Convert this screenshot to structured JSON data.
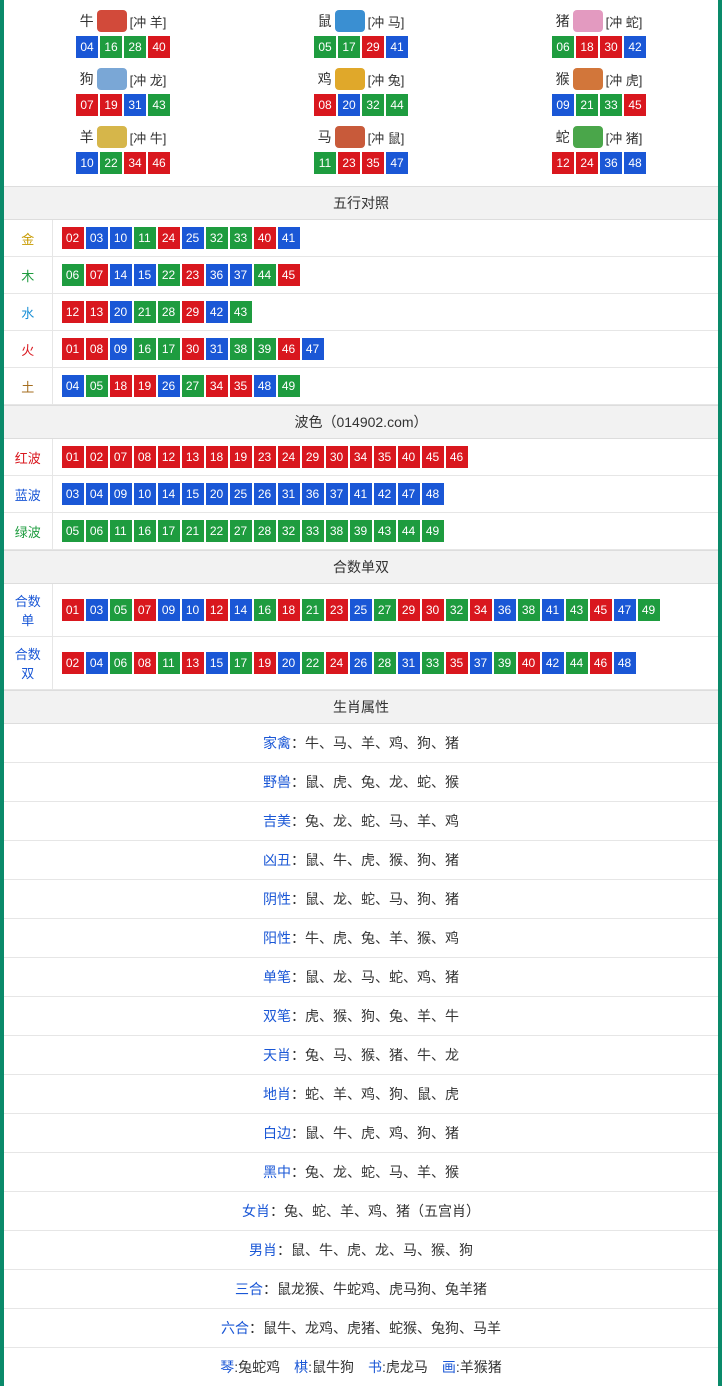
{
  "colors": {
    "red": "#d9171e",
    "blue": "#1a57d6",
    "green": "#1e9c3f",
    "border": "#0a8a6a"
  },
  "zodiac": [
    {
      "name": "牛",
      "icon_color": "#d24a3a",
      "conflict": "[冲 羊]",
      "nums": [
        {
          "v": "04",
          "c": "blue"
        },
        {
          "v": "16",
          "c": "green"
        },
        {
          "v": "28",
          "c": "green"
        },
        {
          "v": "40",
          "c": "red"
        }
      ]
    },
    {
      "name": "鼠",
      "icon_color": "#3a8fd2",
      "conflict": "[冲 马]",
      "nums": [
        {
          "v": "05",
          "c": "green"
        },
        {
          "v": "17",
          "c": "green"
        },
        {
          "v": "29",
          "c": "red"
        },
        {
          "v": "41",
          "c": "blue"
        }
      ]
    },
    {
      "name": "猪",
      "icon_color": "#e39ac0",
      "conflict": "[冲 蛇]",
      "nums": [
        {
          "v": "06",
          "c": "green"
        },
        {
          "v": "18",
          "c": "red"
        },
        {
          "v": "30",
          "c": "red"
        },
        {
          "v": "42",
          "c": "blue"
        }
      ]
    },
    {
      "name": "狗",
      "icon_color": "#7aa7d6",
      "conflict": "[冲 龙]",
      "nums": [
        {
          "v": "07",
          "c": "red"
        },
        {
          "v": "19",
          "c": "red"
        },
        {
          "v": "31",
          "c": "blue"
        },
        {
          "v": "43",
          "c": "green"
        }
      ]
    },
    {
      "name": "鸡",
      "icon_color": "#e0a82a",
      "conflict": "[冲 兔]",
      "nums": [
        {
          "v": "08",
          "c": "red"
        },
        {
          "v": "20",
          "c": "blue"
        },
        {
          "v": "32",
          "c": "green"
        },
        {
          "v": "44",
          "c": "green"
        }
      ]
    },
    {
      "name": "猴",
      "icon_color": "#d2763a",
      "conflict": "[冲 虎]",
      "nums": [
        {
          "v": "09",
          "c": "blue"
        },
        {
          "v": "21",
          "c": "green"
        },
        {
          "v": "33",
          "c": "green"
        },
        {
          "v": "45",
          "c": "red"
        }
      ]
    },
    {
      "name": "羊",
      "icon_color": "#d6b64a",
      "conflict": "[冲 牛]",
      "nums": [
        {
          "v": "10",
          "c": "blue"
        },
        {
          "v": "22",
          "c": "green"
        },
        {
          "v": "34",
          "c": "red"
        },
        {
          "v": "46",
          "c": "red"
        }
      ]
    },
    {
      "name": "马",
      "icon_color": "#c85a3a",
      "conflict": "[冲 鼠]",
      "nums": [
        {
          "v": "11",
          "c": "green"
        },
        {
          "v": "23",
          "c": "red"
        },
        {
          "v": "35",
          "c": "red"
        },
        {
          "v": "47",
          "c": "blue"
        }
      ]
    },
    {
      "name": "蛇",
      "icon_color": "#4aa64a",
      "conflict": "[冲 猪]",
      "nums": [
        {
          "v": "12",
          "c": "red"
        },
        {
          "v": "24",
          "c": "red"
        },
        {
          "v": "36",
          "c": "blue"
        },
        {
          "v": "48",
          "c": "blue"
        }
      ]
    }
  ],
  "sections": {
    "wuxing_title": "五行对照",
    "wuxing": [
      {
        "label": "金",
        "cls": "lbl-gold",
        "nums": [
          {
            "v": "02",
            "c": "red"
          },
          {
            "v": "03",
            "c": "blue"
          },
          {
            "v": "10",
            "c": "blue"
          },
          {
            "v": "11",
            "c": "green"
          },
          {
            "v": "24",
            "c": "red"
          },
          {
            "v": "25",
            "c": "blue"
          },
          {
            "v": "32",
            "c": "green"
          },
          {
            "v": "33",
            "c": "green"
          },
          {
            "v": "40",
            "c": "red"
          },
          {
            "v": "41",
            "c": "blue"
          }
        ]
      },
      {
        "label": "木",
        "cls": "lbl-wood",
        "nums": [
          {
            "v": "06",
            "c": "green"
          },
          {
            "v": "07",
            "c": "red"
          },
          {
            "v": "14",
            "c": "blue"
          },
          {
            "v": "15",
            "c": "blue"
          },
          {
            "v": "22",
            "c": "green"
          },
          {
            "v": "23",
            "c": "red"
          },
          {
            "v": "36",
            "c": "blue"
          },
          {
            "v": "37",
            "c": "blue"
          },
          {
            "v": "44",
            "c": "green"
          },
          {
            "v": "45",
            "c": "red"
          }
        ]
      },
      {
        "label": "水",
        "cls": "lbl-water",
        "nums": [
          {
            "v": "12",
            "c": "red"
          },
          {
            "v": "13",
            "c": "red"
          },
          {
            "v": "20",
            "c": "blue"
          },
          {
            "v": "21",
            "c": "green"
          },
          {
            "v": "28",
            "c": "green"
          },
          {
            "v": "29",
            "c": "red"
          },
          {
            "v": "42",
            "c": "blue"
          },
          {
            "v": "43",
            "c": "green"
          }
        ]
      },
      {
        "label": "火",
        "cls": "lbl-fire",
        "nums": [
          {
            "v": "01",
            "c": "red"
          },
          {
            "v": "08",
            "c": "red"
          },
          {
            "v": "09",
            "c": "blue"
          },
          {
            "v": "16",
            "c": "green"
          },
          {
            "v": "17",
            "c": "green"
          },
          {
            "v": "30",
            "c": "red"
          },
          {
            "v": "31",
            "c": "blue"
          },
          {
            "v": "38",
            "c": "green"
          },
          {
            "v": "39",
            "c": "green"
          },
          {
            "v": "46",
            "c": "red"
          },
          {
            "v": "47",
            "c": "blue"
          }
        ]
      },
      {
        "label": "土",
        "cls": "lbl-earth",
        "nums": [
          {
            "v": "04",
            "c": "blue"
          },
          {
            "v": "05",
            "c": "green"
          },
          {
            "v": "18",
            "c": "red"
          },
          {
            "v": "19",
            "c": "red"
          },
          {
            "v": "26",
            "c": "blue"
          },
          {
            "v": "27",
            "c": "green"
          },
          {
            "v": "34",
            "c": "red"
          },
          {
            "v": "35",
            "c": "red"
          },
          {
            "v": "48",
            "c": "blue"
          },
          {
            "v": "49",
            "c": "green"
          }
        ]
      }
    ],
    "bose_title": "波色（014902.com）",
    "bose": [
      {
        "label": "红波",
        "cls": "lbl-red",
        "nums": [
          {
            "v": "01",
            "c": "red"
          },
          {
            "v": "02",
            "c": "red"
          },
          {
            "v": "07",
            "c": "red"
          },
          {
            "v": "08",
            "c": "red"
          },
          {
            "v": "12",
            "c": "red"
          },
          {
            "v": "13",
            "c": "red"
          },
          {
            "v": "18",
            "c": "red"
          },
          {
            "v": "19",
            "c": "red"
          },
          {
            "v": "23",
            "c": "red"
          },
          {
            "v": "24",
            "c": "red"
          },
          {
            "v": "29",
            "c": "red"
          },
          {
            "v": "30",
            "c": "red"
          },
          {
            "v": "34",
            "c": "red"
          },
          {
            "v": "35",
            "c": "red"
          },
          {
            "v": "40",
            "c": "red"
          },
          {
            "v": "45",
            "c": "red"
          },
          {
            "v": "46",
            "c": "red"
          }
        ]
      },
      {
        "label": "蓝波",
        "cls": "lbl-blue",
        "nums": [
          {
            "v": "03",
            "c": "blue"
          },
          {
            "v": "04",
            "c": "blue"
          },
          {
            "v": "09",
            "c": "blue"
          },
          {
            "v": "10",
            "c": "blue"
          },
          {
            "v": "14",
            "c": "blue"
          },
          {
            "v": "15",
            "c": "blue"
          },
          {
            "v": "20",
            "c": "blue"
          },
          {
            "v": "25",
            "c": "blue"
          },
          {
            "v": "26",
            "c": "blue"
          },
          {
            "v": "31",
            "c": "blue"
          },
          {
            "v": "36",
            "c": "blue"
          },
          {
            "v": "37",
            "c": "blue"
          },
          {
            "v": "41",
            "c": "blue"
          },
          {
            "v": "42",
            "c": "blue"
          },
          {
            "v": "47",
            "c": "blue"
          },
          {
            "v": "48",
            "c": "blue"
          }
        ]
      },
      {
        "label": "绿波",
        "cls": "lbl-green",
        "nums": [
          {
            "v": "05",
            "c": "green"
          },
          {
            "v": "06",
            "c": "green"
          },
          {
            "v": "11",
            "c": "green"
          },
          {
            "v": "16",
            "c": "green"
          },
          {
            "v": "17",
            "c": "green"
          },
          {
            "v": "21",
            "c": "green"
          },
          {
            "v": "22",
            "c": "green"
          },
          {
            "v": "27",
            "c": "green"
          },
          {
            "v": "28",
            "c": "green"
          },
          {
            "v": "32",
            "c": "green"
          },
          {
            "v": "33",
            "c": "green"
          },
          {
            "v": "38",
            "c": "green"
          },
          {
            "v": "39",
            "c": "green"
          },
          {
            "v": "43",
            "c": "green"
          },
          {
            "v": "44",
            "c": "green"
          },
          {
            "v": "49",
            "c": "green"
          }
        ]
      }
    ],
    "heshu_title": "合数单双",
    "heshu": [
      {
        "label": "合数单",
        "cls": "lbl-blue",
        "nums": [
          {
            "v": "01",
            "c": "red"
          },
          {
            "v": "03",
            "c": "blue"
          },
          {
            "v": "05",
            "c": "green"
          },
          {
            "v": "07",
            "c": "red"
          },
          {
            "v": "09",
            "c": "blue"
          },
          {
            "v": "10",
            "c": "blue"
          },
          {
            "v": "12",
            "c": "red"
          },
          {
            "v": "14",
            "c": "blue"
          },
          {
            "v": "16",
            "c": "green"
          },
          {
            "v": "18",
            "c": "red"
          },
          {
            "v": "21",
            "c": "green"
          },
          {
            "v": "23",
            "c": "red"
          },
          {
            "v": "25",
            "c": "blue"
          },
          {
            "v": "27",
            "c": "green"
          },
          {
            "v": "29",
            "c": "red"
          },
          {
            "v": "30",
            "c": "red"
          },
          {
            "v": "32",
            "c": "green"
          },
          {
            "v": "34",
            "c": "red"
          },
          {
            "v": "36",
            "c": "blue"
          },
          {
            "v": "38",
            "c": "green"
          },
          {
            "v": "41",
            "c": "blue"
          },
          {
            "v": "43",
            "c": "green"
          },
          {
            "v": "45",
            "c": "red"
          },
          {
            "v": "47",
            "c": "blue"
          },
          {
            "v": "49",
            "c": "green"
          }
        ]
      },
      {
        "label": "合数双",
        "cls": "lbl-blue",
        "nums": [
          {
            "v": "02",
            "c": "red"
          },
          {
            "v": "04",
            "c": "blue"
          },
          {
            "v": "06",
            "c": "green"
          },
          {
            "v": "08",
            "c": "red"
          },
          {
            "v": "11",
            "c": "green"
          },
          {
            "v": "13",
            "c": "red"
          },
          {
            "v": "15",
            "c": "blue"
          },
          {
            "v": "17",
            "c": "green"
          },
          {
            "v": "19",
            "c": "red"
          },
          {
            "v": "20",
            "c": "blue"
          },
          {
            "v": "22",
            "c": "green"
          },
          {
            "v": "24",
            "c": "red"
          },
          {
            "v": "26",
            "c": "blue"
          },
          {
            "v": "28",
            "c": "green"
          },
          {
            "v": "31",
            "c": "blue"
          },
          {
            "v": "33",
            "c": "green"
          },
          {
            "v": "35",
            "c": "red"
          },
          {
            "v": "37",
            "c": "blue"
          },
          {
            "v": "39",
            "c": "green"
          },
          {
            "v": "40",
            "c": "red"
          },
          {
            "v": "42",
            "c": "blue"
          },
          {
            "v": "44",
            "c": "green"
          },
          {
            "v": "46",
            "c": "red"
          },
          {
            "v": "48",
            "c": "blue"
          }
        ]
      }
    ],
    "attr_title": "生肖属性",
    "attrs": [
      {
        "key": "家禽",
        "kc": "attr-key",
        "val": "：牛、马、羊、鸡、狗、猪"
      },
      {
        "key": "野兽",
        "kc": "attr-key",
        "val": "：鼠、虎、兔、龙、蛇、猴"
      },
      {
        "key": "吉美",
        "kc": "attr-key",
        "val": "：兔、龙、蛇、马、羊、鸡"
      },
      {
        "key": "凶丑",
        "kc": "attr-key",
        "val": "：鼠、牛、虎、猴、狗、猪"
      },
      {
        "key": "阴性",
        "kc": "attr-key",
        "val": "：鼠、龙、蛇、马、狗、猪"
      },
      {
        "key": "阳性",
        "kc": "attr-key",
        "val": "：牛、虎、兔、羊、猴、鸡"
      },
      {
        "key": "单笔",
        "kc": "attr-key",
        "val": "：鼠、龙、马、蛇、鸡、猪"
      },
      {
        "key": "双笔",
        "kc": "attr-key",
        "val": "：虎、猴、狗、兔、羊、牛"
      },
      {
        "key": "天肖",
        "kc": "attr-key",
        "val": "：兔、马、猴、猪、牛、龙"
      },
      {
        "key": "地肖",
        "kc": "attr-key",
        "val": "：蛇、羊、鸡、狗、鼠、虎"
      },
      {
        "key": "白边",
        "kc": "attr-key",
        "val": "：鼠、牛、虎、鸡、狗、猪"
      },
      {
        "key": "黑中",
        "kc": "attr-key",
        "val": "：兔、龙、蛇、马、羊、猴"
      },
      {
        "key": "女肖",
        "kc": "attr-key",
        "val": "：兔、蛇、羊、鸡、猪（五宫肖）"
      },
      {
        "key": "男肖",
        "kc": "attr-key",
        "val": "：鼠、牛、虎、龙、马、猴、狗"
      },
      {
        "key": "三合",
        "kc": "attr-key",
        "val": "：鼠龙猴、牛蛇鸡、虎马狗、兔羊猪"
      },
      {
        "key": "六合",
        "kc": "attr-key",
        "val": "：鼠牛、龙鸡、虎猪、蛇猴、兔狗、马羊"
      }
    ],
    "footer_pairs": [
      {
        "k": "琴",
        "v": ":兔蛇鸡"
      },
      {
        "k": "棋",
        "v": ":鼠牛狗"
      },
      {
        "k": "书",
        "v": ":虎龙马"
      },
      {
        "k": "画",
        "v": ":羊猴猪"
      }
    ]
  }
}
